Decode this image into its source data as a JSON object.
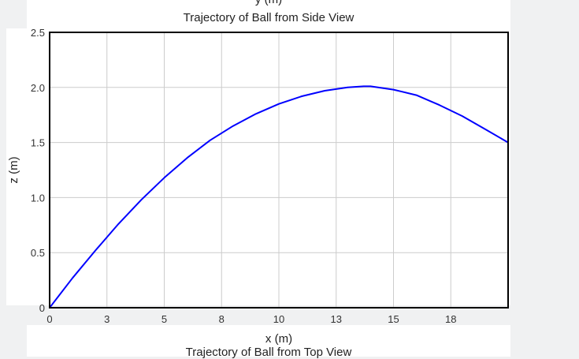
{
  "header": {
    "cut_axis_label": "y (m)",
    "title": "Trajectory of Ball from Side View"
  },
  "footer": {
    "next_title": "Trajectory of Ball from Top View"
  },
  "colors": {
    "line": "#0000ff",
    "grid": "#cccccc",
    "frame": "#000000"
  },
  "chart_data": {
    "type": "line",
    "title": "Trajectory of Ball from Side View",
    "xlabel": "x (m)",
    "ylabel": "z (m)",
    "xlim": [
      0,
      20
    ],
    "ylim": [
      0,
      2.5
    ],
    "x_ticks": [
      0,
      2.5,
      5,
      7.5,
      10,
      12.5,
      15,
      17.5
    ],
    "x_tick_labels": [
      "0",
      "3",
      "5",
      "8",
      "10",
      "13",
      "15",
      "18"
    ],
    "y_ticks": [
      0,
      0.5,
      1.0,
      1.5,
      2.0,
      2.5
    ],
    "y_tick_labels": [
      "0",
      "0.5",
      "1.0",
      "1.5",
      "2.0",
      "2.5"
    ],
    "grid": true,
    "series": [
      {
        "x": [
          0,
          1,
          2,
          3,
          4,
          5,
          6,
          7,
          8,
          9,
          10,
          11,
          12,
          13,
          13.7,
          14,
          15,
          16,
          17,
          18,
          19,
          20
        ],
        "y": [
          0,
          0.27,
          0.52,
          0.76,
          0.98,
          1.18,
          1.36,
          1.52,
          1.65,
          1.76,
          1.85,
          1.92,
          1.97,
          2.0,
          2.01,
          2.01,
          1.98,
          1.93,
          1.84,
          1.74,
          1.62,
          1.5
        ]
      }
    ]
  }
}
